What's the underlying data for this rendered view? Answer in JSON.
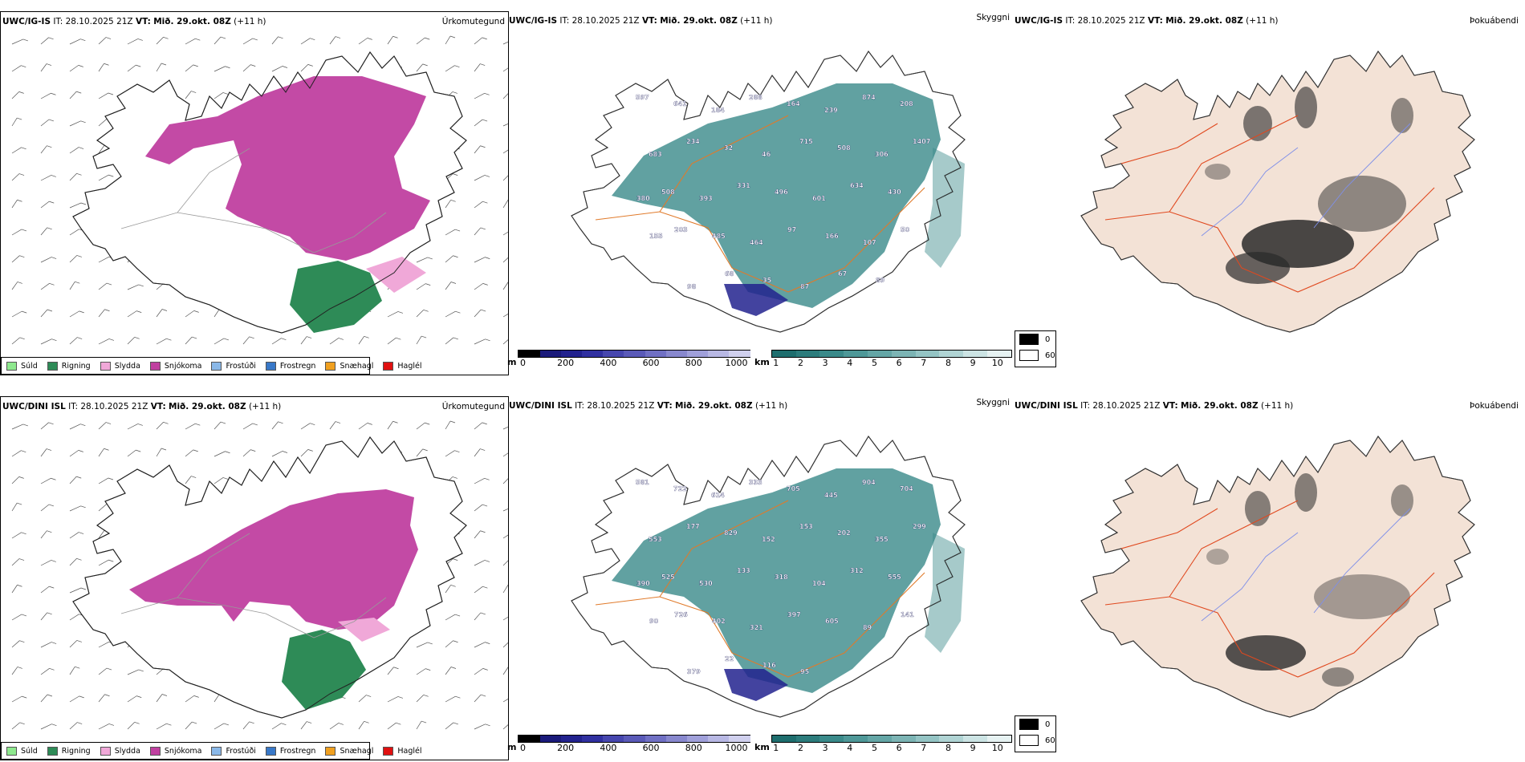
{
  "rows": [
    {
      "precip": {
        "model": "UWC/IG-IS",
        "it_label": "IT:",
        "it_value": "28.10.2025 21Z",
        "vt_label": "VT:",
        "vt_value": "Mið. 29.okt. 08Z",
        "lead": "(+11 h)",
        "field": "Úrkomutegund"
      },
      "cloud": {
        "model": "UWC/IG-IS",
        "it_label": "IT:",
        "it_value": "28.10.2025 21Z",
        "vt_label": "VT:",
        "vt_value": "Mið. 29.okt. 08Z",
        "lead": "(+11 h)",
        "field": "Skyggni",
        "labels": [
          "597",
          "641",
          "184",
          "288",
          "164",
          "239",
          "874",
          "208",
          "683",
          "234",
          "32",
          "46",
          "715",
          "508",
          "306",
          "1407",
          "508",
          "393",
          "331",
          "496",
          "601",
          "634",
          "430",
          "380",
          "203",
          "485",
          "464",
          "97",
          "166",
          "107",
          "50",
          "155",
          "98",
          "68",
          "35",
          "87",
          "67",
          "89"
        ]
      },
      "fog": {
        "model": "UWC/IG-IS",
        "it_label": "IT:",
        "it_value": "28.10.2025 21Z",
        "vt_label": "VT:",
        "vt_value": "Mið. 29.okt. 08Z",
        "lead": "(+11 h)",
        "field": "Þokuábendi"
      }
    },
    {
      "precip": {
        "model": "UWC/DINI ISL",
        "it_label": "IT:",
        "it_value": "28.10.2025 21Z",
        "vt_label": "VT:",
        "vt_value": "Mið. 29.okt. 08Z",
        "lead": "(+11 h)",
        "field": "Úrkomutegund"
      },
      "cloud": {
        "model": "UWC/DINI ISL",
        "it_label": "IT:",
        "it_value": "28.10.2025 21Z",
        "vt_label": "VT:",
        "vt_value": "Mið. 29.okt. 08Z",
        "lead": "(+11 h)",
        "field": "Skyggni",
        "labels": [
          "581",
          "722",
          "614",
          "333",
          "705",
          "445",
          "904",
          "704",
          "553",
          "177",
          "829",
          "152",
          "153",
          "202",
          "355",
          "299",
          "525",
          "530",
          "133",
          "318",
          "104",
          "312",
          "555",
          "390",
          "726",
          "402",
          "321",
          "397",
          "605",
          "89",
          "141",
          "90",
          "379",
          "22",
          "116",
          "95"
        ]
      },
      "fog": {
        "model": "UWC/DINI ISL",
        "it_label": "IT:",
        "it_value": "28.10.2025 21Z",
        "vt_label": "VT:",
        "vt_value": "Mið. 29.okt. 08Z",
        "lead": "(+11 h)",
        "field": "Þokuábendi"
      }
    }
  ],
  "precip_legend": [
    {
      "label": "Súld",
      "color": "#8ee88e"
    },
    {
      "label": "Rigning",
      "color": "#2e8b57"
    },
    {
      "label": "Slydda",
      "color": "#f0a8d8"
    },
    {
      "label": "Snjókoma",
      "color": "#c040a0"
    },
    {
      "label": "Frostúði",
      "color": "#8ab8e8"
    },
    {
      "label": "Frostregn",
      "color": "#3878c8"
    },
    {
      "label": "Snæhagl",
      "color": "#f0a020"
    },
    {
      "label": "Haglél",
      "color": "#e01010"
    }
  ],
  "ceiling_bar": {
    "unit": "m",
    "ticks": [
      "0",
      "200",
      "400",
      "600",
      "800",
      "1000"
    ],
    "colors": [
      "#000000",
      "#1a1a7a",
      "#22228e",
      "#3030a0",
      "#4646ae",
      "#5a5ab8",
      "#7070c4",
      "#8888ce",
      "#a0a0da",
      "#b8b8e4",
      "#d0d0ee"
    ]
  },
  "visibility_bar": {
    "unit": "km",
    "ticks": [
      "1",
      "2",
      "3",
      "4",
      "5",
      "6",
      "7",
      "8",
      "9",
      "10"
    ],
    "colors": [
      "#1e6e6e",
      "#2c7c7c",
      "#3a8a8a",
      "#4e9898",
      "#64a6a6",
      "#7cb4b4",
      "#94c4c4",
      "#b0d4d4",
      "#cce4e4",
      "#e6f2f2"
    ]
  },
  "fog_legend": [
    {
      "label": "0",
      "color": "#000000"
    },
    {
      "label": "60",
      "color": "#ffffff"
    }
  ],
  "colors": {
    "snow": "#c040a0",
    "rain": "#2e8b57",
    "sleet": "#f0a8d8",
    "cloud": "#3a8a8a",
    "land_fog": "#f3e2d6",
    "roads": "#e07a2a",
    "fog_roads": "#e0481e",
    "rivers": "#7f8fe8"
  }
}
